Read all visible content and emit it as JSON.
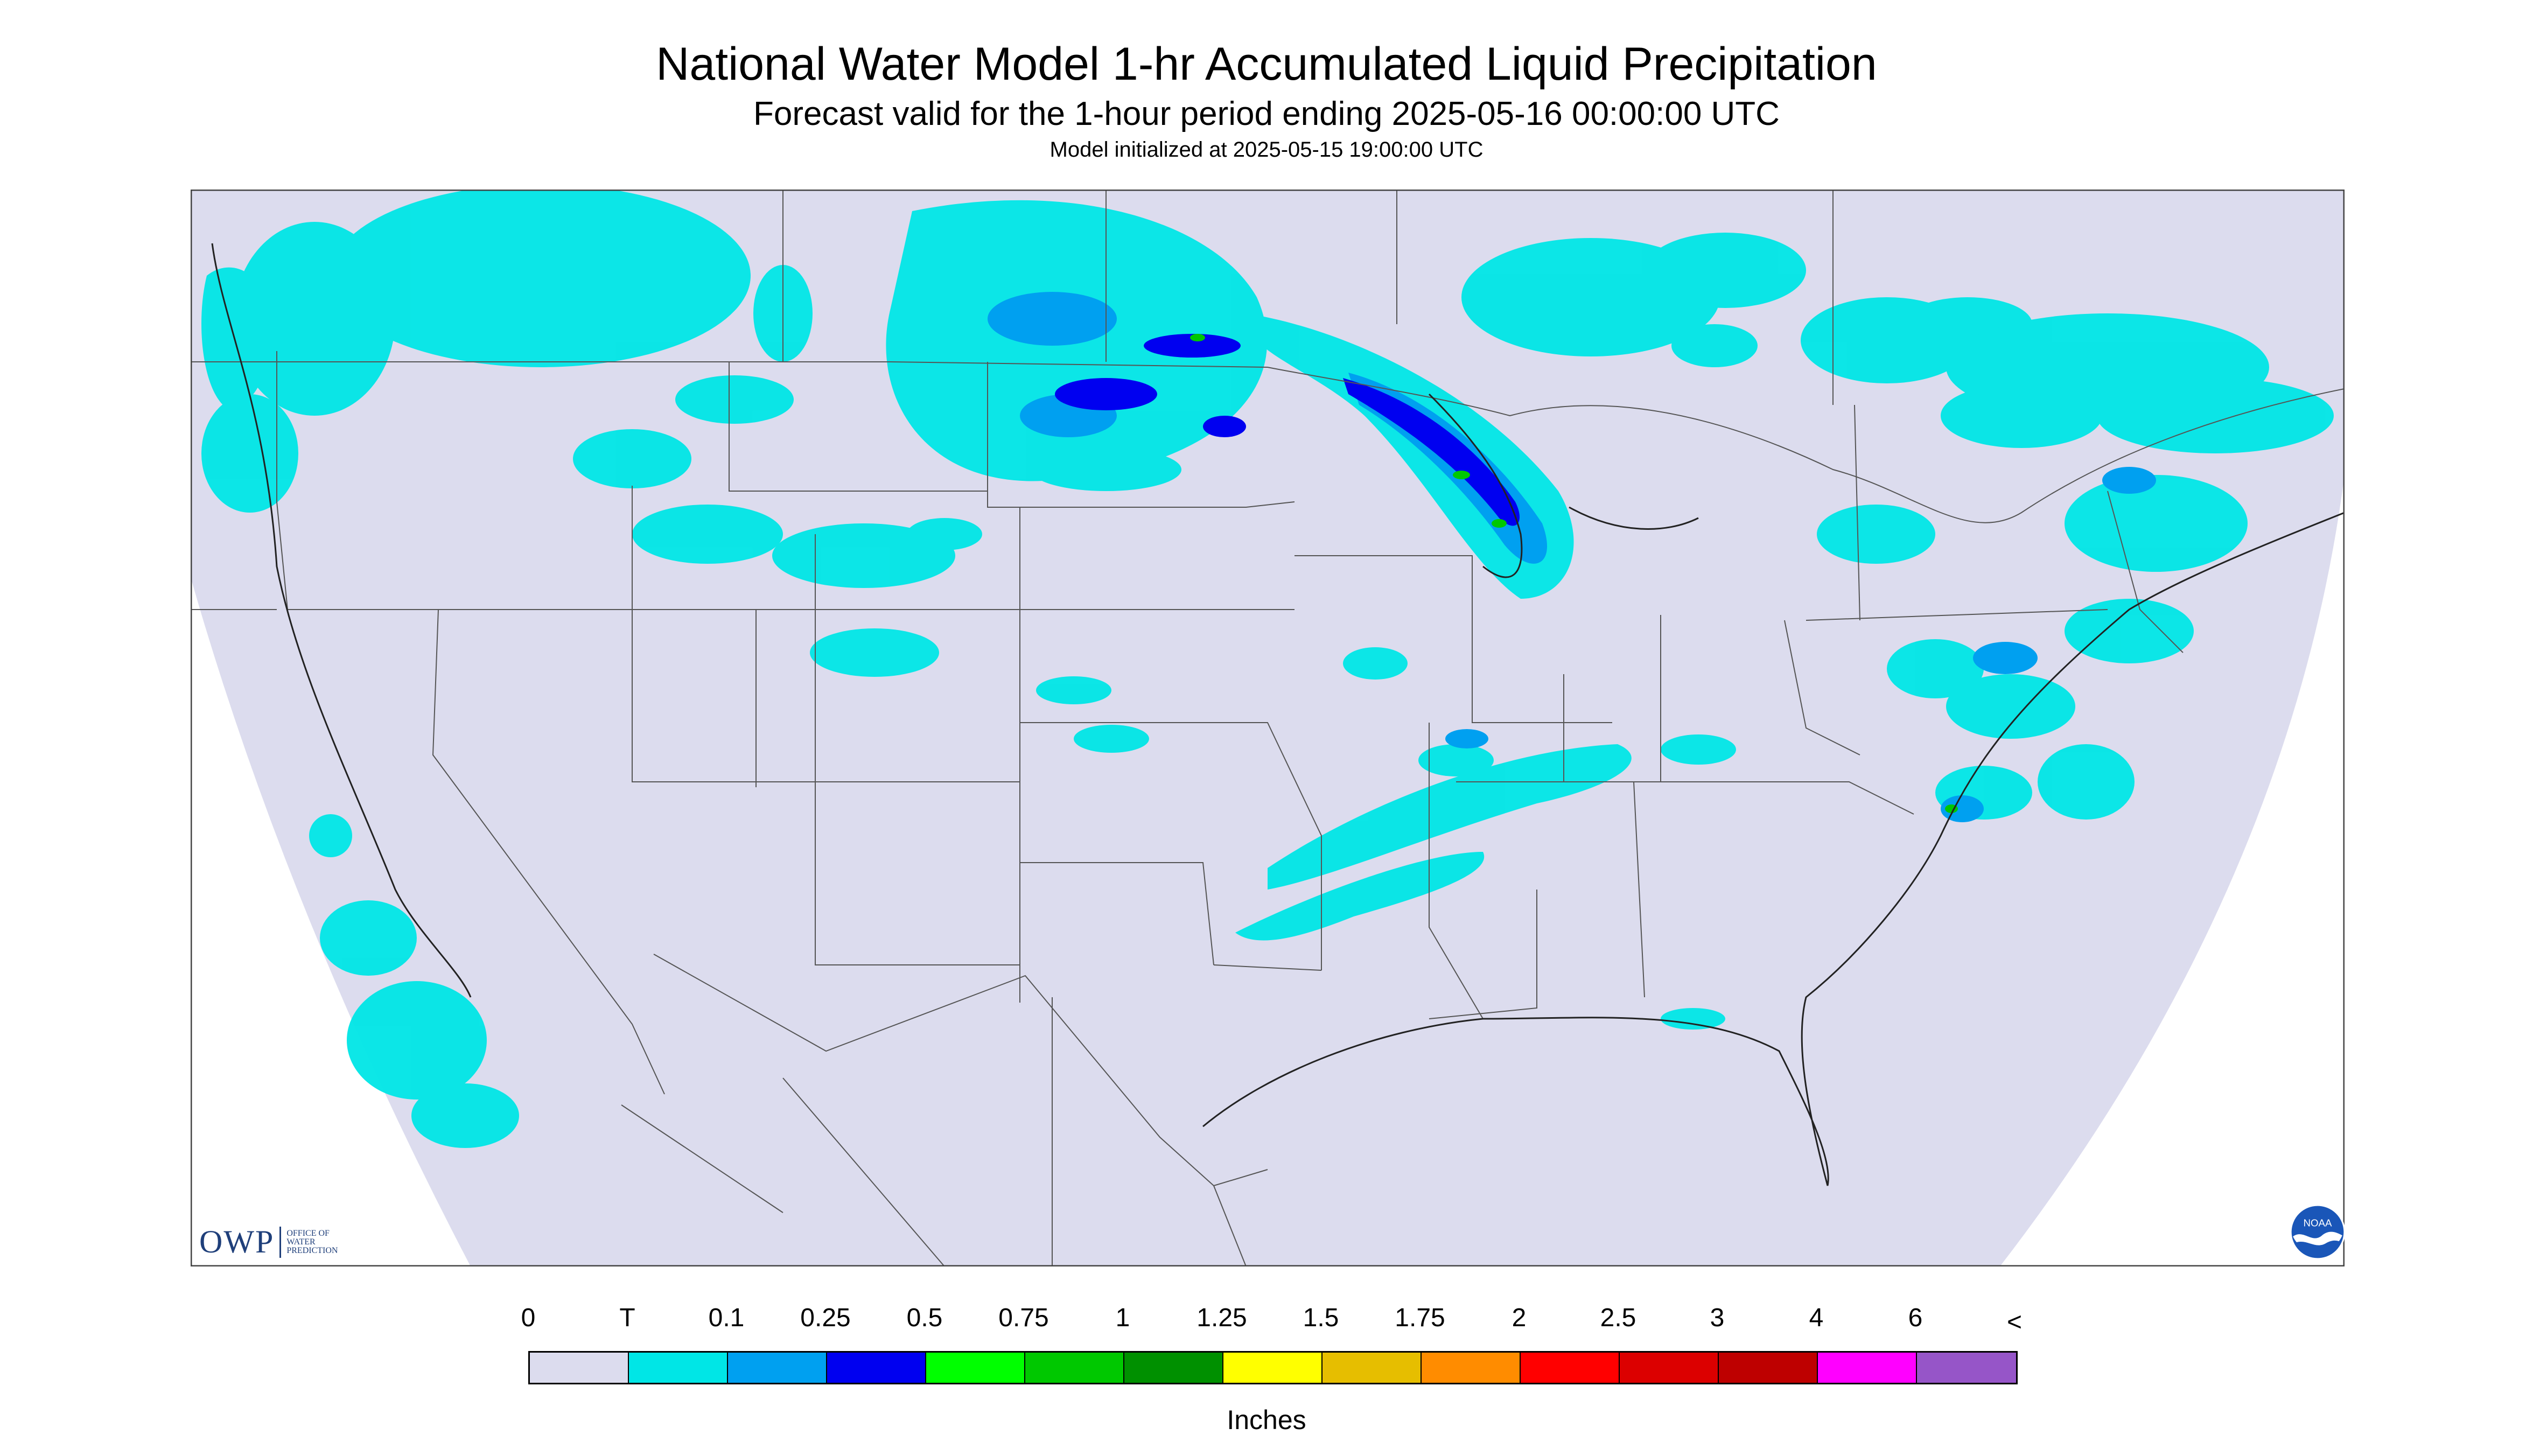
{
  "header": {
    "title": "National Water Model 1-hr Accumulated Liquid Precipitation",
    "subtitle": "Forecast valid for the 1-hour period ending 2025-05-16 00:00:00 UTC",
    "init_note": "Model initialized at 2025-05-15 19:00:00 UTC"
  },
  "legend": {
    "labels": [
      "0",
      "T",
      "0.1",
      "0.25",
      "0.5",
      "0.75",
      "1",
      "1.25",
      "1.5",
      "1.75",
      "2",
      "2.5",
      "3",
      "4",
      "6",
      "<"
    ],
    "colors": [
      "#dcdcee",
      "#00e6e6",
      "#00a0f0",
      "#0000f0",
      "#00ff00",
      "#00c800",
      "#009000",
      "#ffff00",
      "#e6be00",
      "#ff8c00",
      "#ff0000",
      "#dc0000",
      "#be0000",
      "#ff00ff",
      "#9655c8"
    ],
    "units": "Inches"
  },
  "logos": {
    "owp_mark": "OWP",
    "owp_text_lines": [
      "OFFICE OF",
      "WATER",
      "PREDICTION"
    ],
    "noaa": "NOAA"
  },
  "map": {
    "projection_background": "#dcdcee",
    "outside_domain": "#ffffff",
    "border_color": "#555555",
    "precip_colors": {
      "trace": "#00e6e6",
      "light": "#00a0f0",
      "moderate": "#0000f0",
      "heavy": "#00c800"
    }
  }
}
